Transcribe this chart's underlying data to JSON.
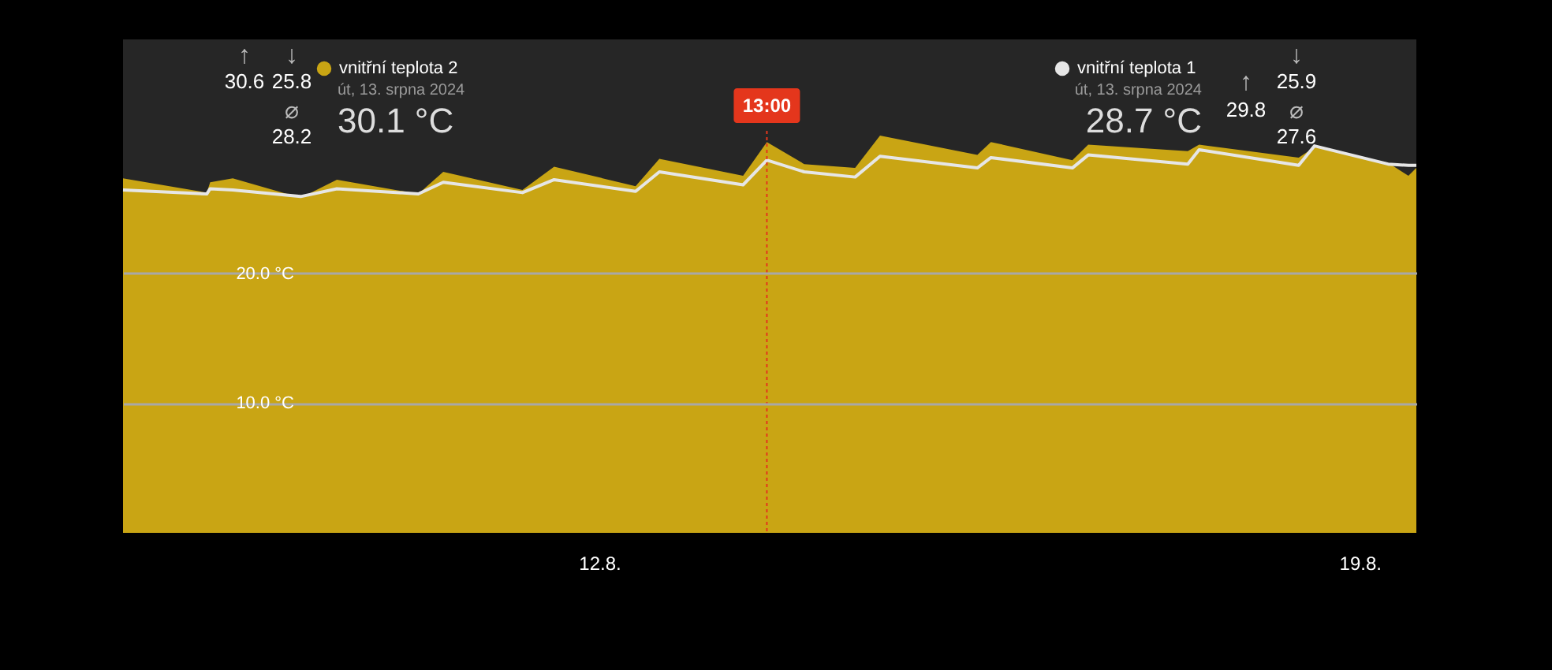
{
  "chart_data": {
    "type": "area",
    "x": [
      "2024-08-07T14:45",
      "2024-08-08T09:15",
      "2024-08-08T10:00",
      "2024-08-08T15:00",
      "2024-08-09T06:00",
      "2024-08-09T14:00",
      "2024-08-10T08:00",
      "2024-08-10T13:30",
      "2024-08-11T07:00",
      "2024-08-11T14:00",
      "2024-08-12T08:00",
      "2024-08-12T13:15",
      "2024-08-13T07:45",
      "2024-08-13T13:00",
      "2024-08-13T21:15",
      "2024-08-14T08:30",
      "2024-08-14T14:00",
      "2024-08-15T11:30",
      "2024-08-15T14:30",
      "2024-08-16T08:30",
      "2024-08-16T12:00",
      "2024-08-17T10:00",
      "2024-08-17T12:30",
      "2024-08-18T10:30",
      "2024-08-18T14:00",
      "2024-08-19T06:15",
      "2024-08-19T10:45",
      "2024-08-19T12:30"
    ],
    "series": [
      {
        "name": "vnitřní teplota 2",
        "color": "#c9a514",
        "values": [
          27.3,
          26.2,
          27.0,
          27.3,
          25.8,
          27.2,
          26.1,
          27.8,
          26.4,
          28.2,
          26.7,
          28.8,
          27.5,
          30.1,
          28.4,
          28.1,
          30.6,
          29.1,
          30.1,
          28.7,
          29.9,
          29.4,
          29.9,
          28.9,
          29.7,
          28.5,
          27.5,
          28.1
        ]
      },
      {
        "name": "vnitřní teplota 1",
        "type": "line",
        "color": "#e6e6e6",
        "values": [
          26.4,
          26.1,
          26.5,
          26.4,
          25.9,
          26.5,
          26.1,
          27.0,
          26.2,
          27.2,
          26.3,
          27.8,
          26.8,
          28.7,
          27.8,
          27.4,
          29.0,
          28.1,
          28.9,
          28.1,
          29.1,
          28.4,
          29.5,
          28.3,
          29.8,
          28.4,
          28.3,
          28.3
        ]
      }
    ],
    "xlim": [
      "2024-08-07T14:45",
      "2024-08-19T12:30"
    ],
    "xticks": [
      {
        "value": "2024-08-12T00:00",
        "label": "12.8."
      },
      {
        "value": "2024-08-19T00:00",
        "label": "19.8."
      }
    ],
    "ylim": [
      0,
      38
    ],
    "yticks": [
      {
        "value": 10,
        "label": "10.0 °C"
      },
      {
        "value": 20,
        "label": "20.0 °C"
      }
    ],
    "grid": "y",
    "legend": "top",
    "ref_lines": [
      {
        "axis": "x",
        "value": "2024-08-13T13:00",
        "label": "13:00",
        "color": "#e4361c",
        "line_style": "dotted"
      }
    ],
    "annotations": [
      "↑",
      "↓",
      "30.6",
      "25.8",
      "⌀",
      "28.2",
      "út, 13. srpna 2024",
      "30.1 °C",
      "út, 13. srpna 2024",
      "28.7 °C",
      "↑",
      "↓",
      "29.8",
      "25.9",
      "⌀",
      "27.6"
    ]
  }
}
